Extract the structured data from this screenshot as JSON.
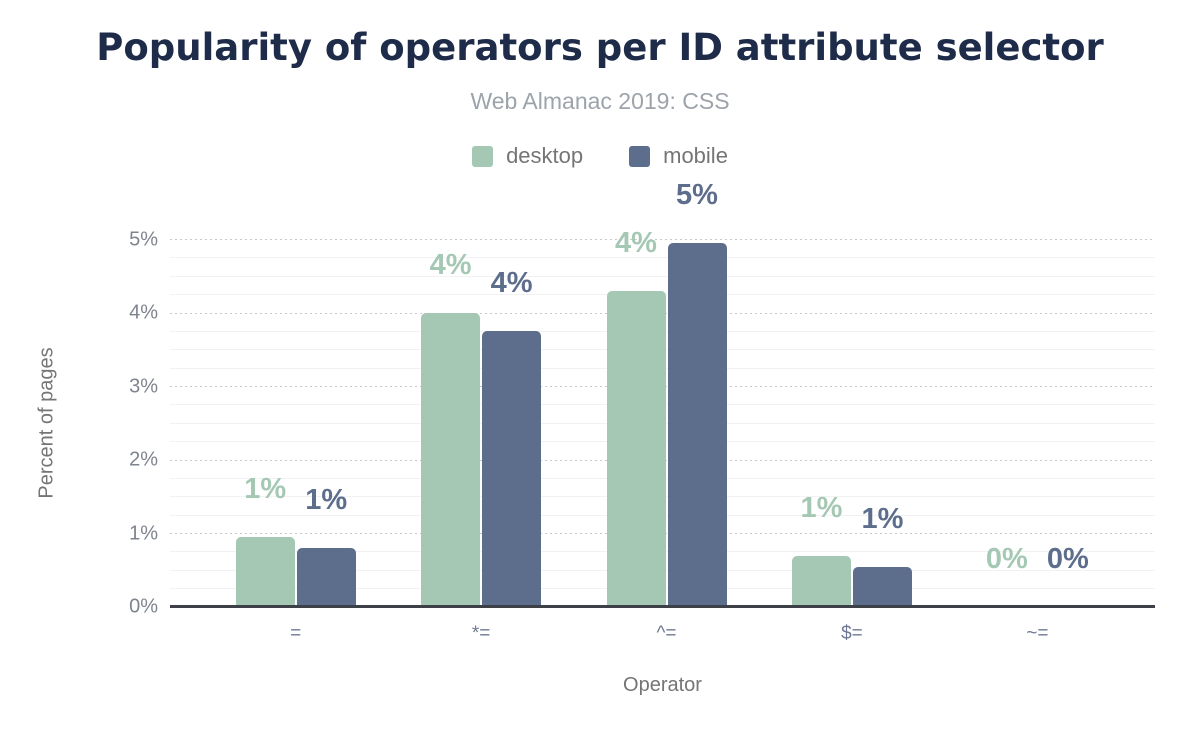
{
  "title": "Popularity of operators per ID attribute selector",
  "subtitle": "Web Almanac 2019: CSS",
  "legend": {
    "items": [
      {
        "label": "desktop",
        "color": "#a5c8b4"
      },
      {
        "label": "mobile",
        "color": "#5d6d8c"
      }
    ]
  },
  "colors": {
    "title": "#1e2b49",
    "subtitle": "#9da3aa",
    "axis_text": "#757575",
    "axis_line": "#3d4046",
    "desktop": "#a5c8b4",
    "mobile": "#5d6d8c"
  },
  "chart_data": {
    "type": "bar",
    "categories": [
      "=",
      "*=",
      "^=",
      "$=",
      "~="
    ],
    "series": [
      {
        "name": "desktop",
        "color": "#a5c8b4",
        "values": [
          0.95,
          4.0,
          4.3,
          0.7,
          0.0
        ],
        "labels": [
          "1%",
          "4%",
          "4%",
          "1%",
          "0%"
        ]
      },
      {
        "name": "mobile",
        "color": "#5d6d8c",
        "values": [
          0.8,
          3.75,
          4.95,
          0.55,
          0.0
        ],
        "labels": [
          "1%",
          "4%",
          "5%",
          "1%",
          "0%"
        ]
      }
    ],
    "title": "Popularity of operators per ID attribute selector",
    "subtitle": "Web Almanac 2019: CSS",
    "xlabel": "Operator",
    "ylabel": "Percent of pages",
    "y_ticks": [
      "0%",
      "1%",
      "2%",
      "3%",
      "4%",
      "5%"
    ],
    "ylim": [
      0,
      5
    ],
    "minor_grid_step": 0.25,
    "grid": true,
    "legend_position": "top"
  }
}
